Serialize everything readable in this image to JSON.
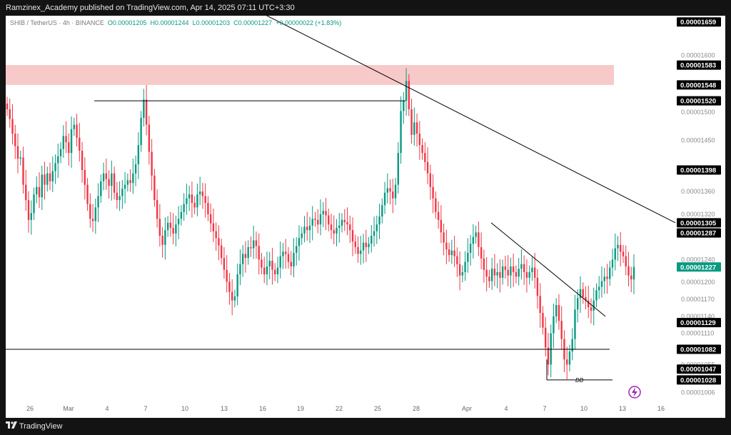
{
  "header": {
    "publisher": "Ramzinex_Academy published on TradingView.com, Apr 14, 2025 07:11 UTC+3:30"
  },
  "legend": {
    "symbol": "SHIB / TetherUS · 4h · BINANCE",
    "open": "O0.00001205",
    "high": "H0.00001244",
    "low": "L0.00001203",
    "close": "C0.00001227",
    "change": "+0.00000022 (+1.83%)"
  },
  "footer": {
    "brand": "TradingView"
  },
  "colors": {
    "up": "#089981",
    "down": "#f23645",
    "zone": "#f8c9c9",
    "line": "#000000"
  },
  "chart_data": {
    "type": "candlestick",
    "title": "",
    "x_ticks": [
      "26",
      "Mar",
      "4",
      "7",
      "10",
      "13",
      "16",
      "19",
      "22",
      "25",
      "28",
      "Apr",
      "4",
      "7",
      "10",
      "13",
      "16"
    ],
    "y_ticks": [
      "0.00001600",
      "0.00001500",
      "0.00001450",
      "0.00001360",
      "0.00001320",
      "0.00001240",
      "0.00001200",
      "0.00001170",
      "0.00001140",
      "0.00001110",
      "0.00001055",
      "0.00001006"
    ],
    "y_range": [
      9.9e-06,
      1.67e-05
    ],
    "price_labels": [
      {
        "text": "0.00001659",
        "value": 1.659e-05
      },
      {
        "text": "0.00001583",
        "value": 1.583e-05
      },
      {
        "text": "0.00001548",
        "value": 1.548e-05
      },
      {
        "text": "0.00001520",
        "value": 1.52e-05
      },
      {
        "text": "0.00001398",
        "value": 1.398e-05
      },
      {
        "text": "0.00001305",
        "value": 1.305e-05
      },
      {
        "text": "0.00001287",
        "value": 1.287e-05
      },
      {
        "text": "0.00001227",
        "value": 1.227e-05,
        "current": true
      },
      {
        "text": "0.00001129",
        "value": 1.129e-05
      },
      {
        "text": "0.00001082",
        "value": 1.082e-05
      },
      {
        "text": "0.00001047",
        "value": 1.047e-05
      },
      {
        "text": "0.00001028",
        "value": 1.028e-05
      }
    ],
    "resistance_zone": [
      1.548e-05,
      1.583e-05
    ],
    "annotation": "DB",
    "closes": [
      1.505e-05,
      1.488e-05,
      1.462e-05,
      1.44e-05,
      1.418e-05,
      1.42e-05,
      1.372e-05,
      1.345e-05,
      1.31e-05,
      1.322e-05,
      1.355e-05,
      1.368e-05,
      1.35e-05,
      1.39e-05,
      1.372e-05,
      1.392e-05,
      1.378e-05,
      1.396e-05,
      1.41e-05,
      1.422e-05,
      1.435e-05,
      1.458e-05,
      1.447e-05,
      1.428e-05,
      1.47e-05,
      1.478e-05,
      1.455e-05,
      1.432e-05,
      1.398e-05,
      1.372e-05,
      1.338e-05,
      1.312e-05,
      1.308e-05,
      1.332e-05,
      1.352e-05,
      1.378e-05,
      1.392e-05,
      1.382e-05,
      1.37e-05,
      1.392e-05,
      1.358e-05,
      1.345e-05,
      1.352e-05,
      1.365e-05,
      1.372e-05,
      1.38e-05,
      1.375e-05,
      1.392e-05,
      1.408e-05,
      1.442e-05,
      1.49e-05,
      1.522e-05,
      1.478e-05,
      1.43e-05,
      1.388e-05,
      1.345e-05,
      1.312e-05,
      1.282e-05,
      1.266e-05,
      1.292e-05,
      1.305e-05,
      1.296e-05,
      1.286e-05,
      1.302e-05,
      1.312e-05,
      1.324e-05,
      1.338e-05,
      1.348e-05,
      1.355e-05,
      1.34e-05,
      1.332e-05,
      1.355e-05,
      1.36e-05,
      1.352e-05,
      1.34e-05,
      1.32e-05,
      1.304e-05,
      1.29e-05,
      1.278e-05,
      1.265e-05,
      1.243e-05,
      1.222e-05,
      1.201e-05,
      1.183e-05,
      1.168e-05,
      1.175e-05,
      1.214e-05,
      1.232e-05,
      1.25e-05,
      1.243e-05,
      1.262e-05,
      1.26e-05,
      1.274e-05,
      1.264e-05,
      1.24e-05,
      1.226e-05,
      1.214e-05,
      1.228e-05,
      1.238e-05,
      1.222e-05,
      1.214e-05,
      1.226e-05,
      1.246e-05,
      1.254e-05,
      1.25e-05,
      1.236e-05,
      1.228e-05,
      1.252e-05,
      1.264e-05,
      1.278e-05,
      1.286e-05,
      1.298e-05,
      1.292e-05,
      1.3e-05,
      1.312e-05,
      1.31e-05,
      1.302e-05,
      1.32e-05,
      1.326e-05,
      1.318e-05,
      1.302e-05,
      1.292e-05,
      1.286e-05,
      1.296e-05,
      1.3e-05,
      1.31e-05,
      1.306e-05,
      1.302e-05,
      1.292e-05,
      1.272e-05,
      1.262e-05,
      1.25e-05,
      1.256e-05,
      1.27e-05,
      1.262e-05,
      1.268e-05,
      1.282e-05,
      1.29e-05,
      1.302e-05,
      1.316e-05,
      1.336e-05,
      1.358e-05,
      1.366e-05,
      1.36e-05,
      1.348e-05,
      1.372e-05,
      1.428e-05,
      1.502e-05,
      1.52e-05,
      1.555e-05,
      1.505e-05,
      1.46e-05,
      1.482e-05,
      1.462e-05,
      1.442e-05,
      1.428e-05,
      1.412e-05,
      1.392e-05,
      1.368e-05,
      1.348e-05,
      1.324e-05,
      1.31e-05,
      1.288e-05,
      1.27e-05,
      1.258e-05,
      1.248e-05,
      1.256e-05,
      1.246e-05,
      1.232e-05,
      1.212e-05,
      1.218e-05,
      1.236e-05,
      1.252e-05,
      1.268e-05,
      1.28e-05,
      1.288e-05,
      1.262e-05,
      1.242e-05,
      1.222e-05,
      1.21e-05,
      1.202e-05,
      1.224e-05,
      1.212e-05,
      1.218e-05,
      1.208e-05,
      1.228e-05,
      1.222e-05,
      1.212e-05,
      1.228e-05,
      1.218e-05,
      1.21e-05,
      1.224e-05,
      1.232e-05,
      1.218e-05,
      1.208e-05,
      1.218e-05,
      1.226e-05,
      1.208e-05,
      1.176e-05,
      1.146e-05,
      1.12e-05,
      1.085e-05,
      1.055e-05,
      1.11e-05,
      1.14e-05,
      1.16e-05,
      1.132e-05,
      1.1e-05,
      1.064e-05,
      1.055e-05,
      1.078e-05,
      1.1e-05,
      1.152e-05,
      1.172e-05,
      1.188e-05,
      1.174e-05,
      1.168e-05,
      1.156e-05,
      1.15e-05,
      1.168e-05,
      1.186e-05,
      1.192e-05,
      1.202e-05,
      1.21e-05,
      1.206e-05,
      1.226e-05,
      1.24e-05,
      1.26e-05,
      1.266e-05,
      1.254e-05,
      1.246e-05,
      1.228e-05,
      1.212e-05,
      1.205e-05,
      1.227e-05
    ]
  }
}
